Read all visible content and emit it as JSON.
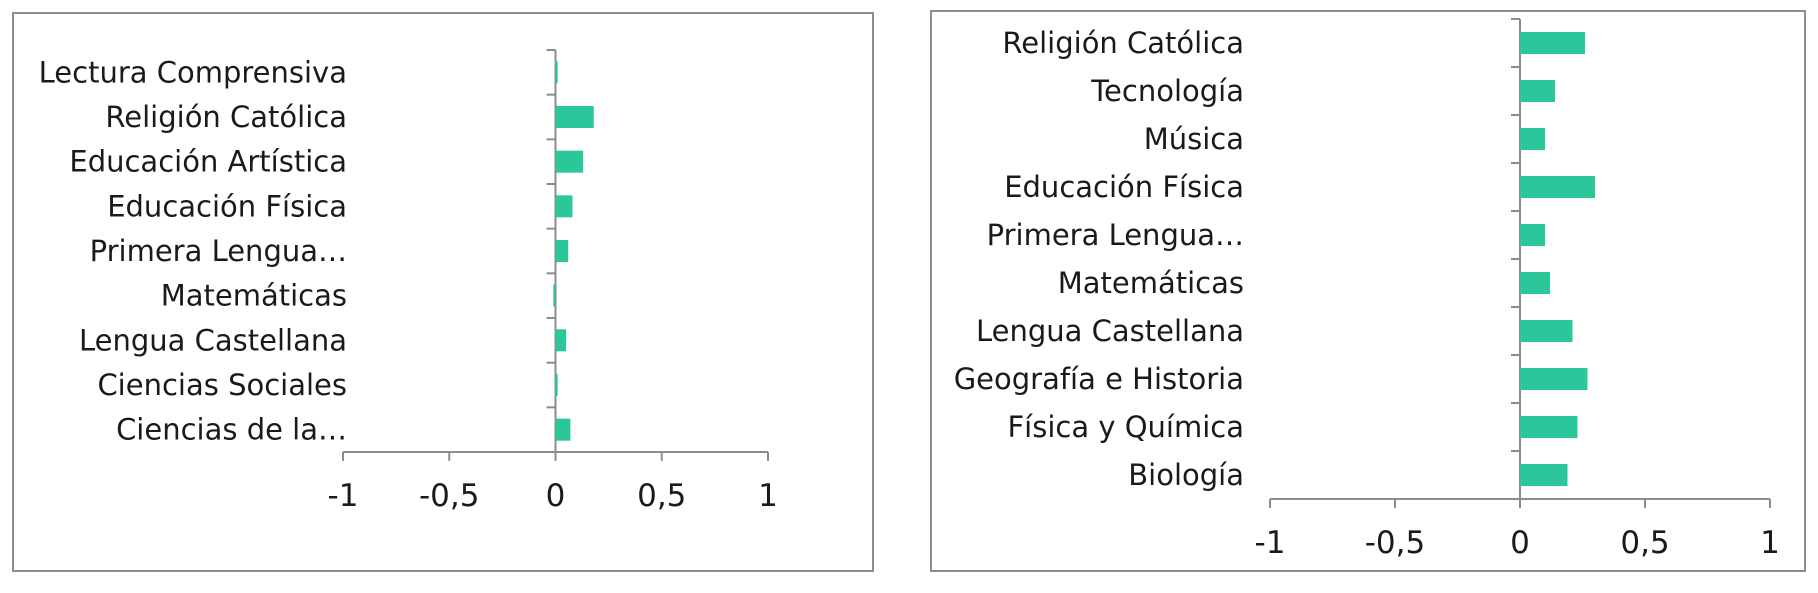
{
  "chart_data": [
    {
      "type": "bar",
      "orientation": "horizontal",
      "categories": [
        "Lectura Comprensiva",
        "Religión Católica",
        "Educación Artística",
        "Educación Física",
        "Primera Lengua…",
        "Matemáticas",
        "Lengua Castellana",
        "Ciencias Sociales",
        "Ciencias de la…"
      ],
      "values": [
        0.01,
        0.18,
        0.13,
        0.08,
        0.06,
        -0.01,
        0.05,
        0.01,
        0.07
      ],
      "xlim": [
        -1,
        1
      ],
      "xticks": [
        "-1",
        "-0,5",
        "0",
        "0,5",
        "1"
      ],
      "title": "",
      "xlabel": "",
      "ylabel": "",
      "bar_color": "#2bc79a",
      "grid": false
    },
    {
      "type": "bar",
      "orientation": "horizontal",
      "categories": [
        "Religión Católica",
        "Tecnología",
        "Música",
        "Educación Física",
        "Primera Lengua…",
        "Matemáticas",
        "Lengua Castellana",
        "Geografía e Historia",
        "Física y Química",
        "Biología"
      ],
      "values": [
        0.26,
        0.14,
        0.1,
        0.3,
        0.1,
        0.12,
        0.21,
        0.27,
        0.23,
        0.19
      ],
      "xlim": [
        -1,
        1
      ],
      "xticks": [
        "-1",
        "-0,5",
        "0",
        "0,5",
        "1"
      ],
      "title": "",
      "xlabel": "",
      "ylabel": "",
      "bar_color": "#2bc79a",
      "grid": false
    }
  ]
}
